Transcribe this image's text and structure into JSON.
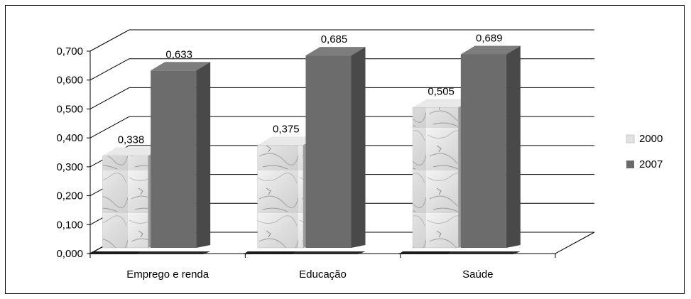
{
  "chart_data": {
    "type": "bar",
    "title": "",
    "xlabel": "",
    "ylabel": "",
    "categories": [
      "Emprego e renda",
      "Educação",
      "Saúde"
    ],
    "series": [
      {
        "name": "2000",
        "values": [
          0.338,
          0.375,
          0.505
        ],
        "labels": [
          "0,338",
          "0,375",
          "0,505"
        ],
        "color": "#dcdcdc"
      },
      {
        "name": "2007",
        "values": [
          0.633,
          0.685,
          0.689
        ],
        "labels": [
          "0,633",
          "0,685",
          "0,689"
        ],
        "color": "#6a6a6a"
      }
    ],
    "ylim": [
      0,
      0.7
    ],
    "yticks": [
      0,
      0.1,
      0.2,
      0.3,
      0.4,
      0.5,
      0.6,
      0.7
    ],
    "ytick_labels": [
      "0,000",
      "0,100",
      "0,200",
      "0,300",
      "0,400",
      "0,500",
      "0,600",
      "0,700"
    ],
    "grid": true,
    "legend_position": "right",
    "style": "3d-clustered-column"
  }
}
